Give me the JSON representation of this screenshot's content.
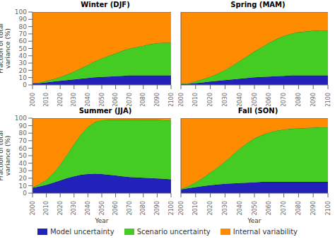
{
  "chart_data": [
    {
      "type": "area",
      "title": "Winter (DJF)",
      "stacked": true,
      "ylabel": "Fraction of total\nvariance (%)",
      "x": [
        2000,
        2005,
        2010,
        2015,
        2020,
        2025,
        2030,
        2035,
        2040,
        2045,
        2050,
        2055,
        2060,
        2065,
        2070,
        2075,
        2080,
        2085,
        2090,
        2095,
        2100
      ],
      "series": [
        {
          "name": "Model uncertainty",
          "color": "#2222bb",
          "values": [
            2.0,
            2.5,
            3.5,
            4.5,
            5.5,
            6.5,
            7.5,
            8.5,
            9.5,
            10.5,
            11.0,
            11.5,
            12.0,
            12.5,
            13.0,
            13.0,
            13.0,
            13.0,
            13.0,
            13.0,
            13.0
          ]
        },
        {
          "name": "Scenario uncertainty",
          "color": "#44cc22",
          "values": [
            0.5,
            1.0,
            2.0,
            3.5,
            5.5,
            8.0,
            11.0,
            14.5,
            18.0,
            22.0,
            25.5,
            28.5,
            31.5,
            34.5,
            37.0,
            39.0,
            41.0,
            43.0,
            44.5,
            45.0,
            45.0
          ]
        },
        {
          "name": "Internal variability",
          "color": "#ff8c00",
          "values": [
            97.5,
            96.5,
            94.5,
            92.0,
            89.0,
            85.5,
            81.5,
            77.0,
            72.5,
            67.5,
            63.5,
            60.0,
            56.5,
            53.0,
            50.0,
            48.0,
            46.0,
            44.0,
            42.5,
            42.0,
            42.0
          ]
        }
      ],
      "xlim": [
        2000,
        2100
      ],
      "ylim": [
        0,
        100
      ],
      "xticks": [
        2000,
        2010,
        2020,
        2030,
        2040,
        2050,
        2060,
        2070,
        2080,
        2090,
        2100
      ],
      "yticks": [
        0,
        10,
        20,
        30,
        40,
        50,
        60,
        70,
        80,
        90,
        100
      ]
    },
    {
      "type": "area",
      "title": "Spring (MAM)",
      "stacked": true,
      "tick_labels": "x",
      "x": [
        2000,
        2005,
        2010,
        2015,
        2020,
        2025,
        2030,
        2035,
        2040,
        2045,
        2050,
        2055,
        2060,
        2065,
        2070,
        2075,
        2080,
        2085,
        2090,
        2095,
        2100
      ],
      "series": [
        {
          "name": "Model uncertainty",
          "color": "#2222bb",
          "values": [
            1.0,
            1.5,
            2.5,
            3.5,
            4.5,
            5.5,
            6.5,
            7.5,
            8.5,
            9.5,
            10.5,
            11.0,
            11.5,
            12.0,
            12.5,
            13.0,
            13.0,
            13.0,
            13.0,
            13.0,
            13.0
          ]
        },
        {
          "name": "Scenario uncertainty",
          "color": "#44cc22",
          "values": [
            0.5,
            1.0,
            2.5,
            4.5,
            7.0,
            10.0,
            14.0,
            19.0,
            24.5,
            30.0,
            35.5,
            41.0,
            46.5,
            51.0,
            55.0,
            57.5,
            59.5,
            60.5,
            61.5,
            62.0,
            62.0
          ]
        },
        {
          "name": "Internal variability",
          "color": "#ff8c00",
          "values": [
            98.5,
            97.5,
            95.0,
            92.0,
            88.5,
            84.5,
            79.5,
            73.5,
            67.0,
            60.5,
            54.0,
            48.0,
            42.0,
            37.0,
            32.5,
            29.5,
            27.5,
            26.5,
            25.5,
            25.0,
            25.0
          ]
        }
      ],
      "xlim": [
        2000,
        2100
      ],
      "ylim": [
        0,
        100
      ],
      "xticks": [
        2000,
        2010,
        2020,
        2030,
        2040,
        2050,
        2060,
        2070,
        2080,
        2090,
        2100
      ],
      "yticks": [
        0,
        10,
        20,
        30,
        40,
        50,
        60,
        70,
        80,
        90,
        100
      ]
    },
    {
      "type": "area",
      "title": "Summer (JJA)",
      "stacked": true,
      "ylabel": "Fraction of total\nvariance (%)",
      "xlabel": "Year",
      "x": [
        2000,
        2005,
        2010,
        2015,
        2020,
        2025,
        2030,
        2035,
        2040,
        2045,
        2050,
        2055,
        2060,
        2065,
        2070,
        2075,
        2080,
        2085,
        2090,
        2095,
        2100
      ],
      "series": [
        {
          "name": "Model uncertainty",
          "color": "#2222bb",
          "values": [
            7.0,
            9.0,
            11.0,
            14.0,
            17.0,
            20.0,
            22.5,
            24.5,
            25.5,
            26.0,
            25.5,
            24.5,
            23.5,
            22.5,
            21.5,
            21.0,
            20.5,
            20.0,
            19.5,
            19.0,
            18.5
          ]
        },
        {
          "name": "Scenario uncertainty",
          "color": "#44cc22",
          "values": [
            1.0,
            3.0,
            7.0,
            13.0,
            21.0,
            32.0,
            43.0,
            54.0,
            63.0,
            69.0,
            72.0,
            73.5,
            74.5,
            75.5,
            76.5,
            77.0,
            77.5,
            78.0,
            78.5,
            78.5,
            78.5
          ]
        },
        {
          "name": "Internal variability",
          "color": "#ff8c00",
          "values": [
            92.0,
            88.0,
            82.0,
            73.0,
            62.0,
            48.0,
            34.5,
            21.5,
            11.5,
            5.0,
            2.5,
            2.0,
            2.0,
            2.0,
            2.0,
            2.0,
            2.0,
            2.0,
            2.0,
            2.5,
            3.0
          ]
        }
      ],
      "xlim": [
        2000,
        2100
      ],
      "ylim": [
        0,
        100
      ],
      "xticks": [
        2000,
        2010,
        2020,
        2030,
        2040,
        2050,
        2060,
        2070,
        2080,
        2090,
        2100
      ],
      "yticks": [
        0,
        10,
        20,
        30,
        40,
        50,
        60,
        70,
        80,
        90,
        100
      ]
    },
    {
      "type": "area",
      "title": "Fall (SON)",
      "stacked": true,
      "xlabel": "Year",
      "tick_labels": "x",
      "x": [
        2000,
        2005,
        2010,
        2015,
        2020,
        2025,
        2030,
        2035,
        2040,
        2045,
        2050,
        2055,
        2060,
        2065,
        2070,
        2075,
        2080,
        2085,
        2090,
        2095,
        2100
      ],
      "series": [
        {
          "name": "Model uncertainty",
          "color": "#2222bb",
          "values": [
            5.0,
            6.5,
            8.0,
            9.5,
            10.5,
            11.5,
            12.5,
            13.0,
            13.5,
            14.0,
            14.5,
            15.0,
            15.0,
            15.0,
            15.0,
            15.0,
            15.0,
            15.0,
            15.0,
            15.0,
            15.0
          ]
        },
        {
          "name": "Scenario uncertainty",
          "color": "#44cc22",
          "values": [
            1.0,
            3.0,
            6.5,
            11.0,
            17.0,
            23.0,
            30.0,
            38.0,
            46.0,
            53.0,
            58.5,
            62.5,
            66.0,
            68.5,
            70.0,
            71.0,
            71.5,
            72.0,
            72.5,
            73.0,
            73.0
          ]
        },
        {
          "name": "Internal variability",
          "color": "#ff8c00",
          "values": [
            94.0,
            90.5,
            85.5,
            79.5,
            72.5,
            65.5,
            57.5,
            49.0,
            40.5,
            33.0,
            27.0,
            22.5,
            19.0,
            16.5,
            15.0,
            14.0,
            13.5,
            13.0,
            12.5,
            12.0,
            12.0
          ]
        }
      ],
      "xlim": [
        2000,
        2100
      ],
      "ylim": [
        0,
        100
      ],
      "xticks": [
        2000,
        2010,
        2020,
        2030,
        2040,
        2050,
        2060,
        2070,
        2080,
        2090,
        2100
      ],
      "yticks": [
        0,
        10,
        20,
        30,
        40,
        50,
        60,
        70,
        80,
        90,
        100
      ]
    }
  ]
}
